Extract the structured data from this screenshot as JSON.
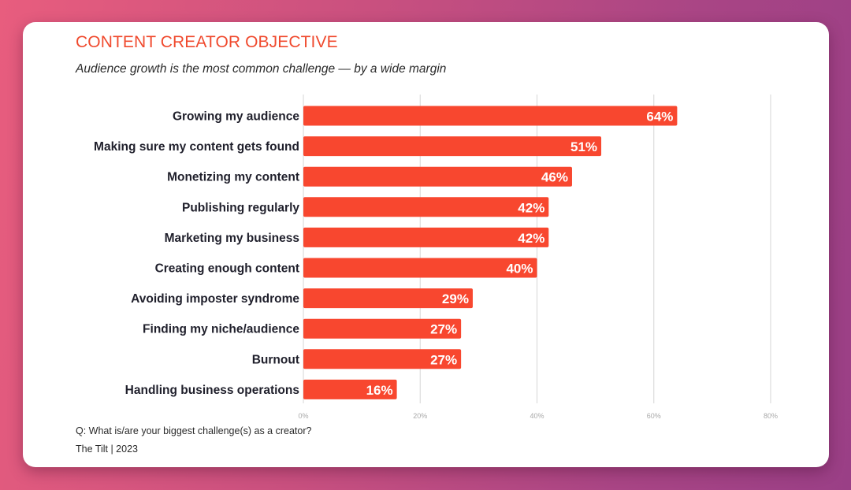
{
  "chart_data": {
    "type": "bar",
    "orientation": "horizontal",
    "title": "CONTENT CREATOR OBJECTIVE",
    "subtitle": "Audience growth is the most common challenge — by a wide margin",
    "categories": [
      "Growing my audience",
      "Making sure my content gets found",
      "Monetizing my content",
      "Publishing regularly",
      "Marketing my business",
      "Creating enough content",
      "Avoiding imposter syndrome",
      "Finding my niche/audience",
      "Burnout",
      "Handling business operations"
    ],
    "values": [
      64,
      51,
      46,
      42,
      42,
      40,
      29,
      27,
      27,
      16
    ],
    "value_labels": [
      "64%",
      "51%",
      "46%",
      "42%",
      "42%",
      "40%",
      "29%",
      "27%",
      "27%",
      "16%"
    ],
    "unit": "%",
    "xlim": [
      0,
      80
    ],
    "x_ticks": [
      0,
      20,
      40,
      60,
      80
    ],
    "x_tick_labels": [
      "0%",
      "20%",
      "40%",
      "60%",
      "80%"
    ],
    "xlabel": "",
    "ylabel": "",
    "grid": true,
    "legend": "none",
    "bar_color": "#f8472f"
  },
  "footer": {
    "question": "Q: What is/are your biggest challenge(s) as a creator?",
    "source": "The Tilt  |  2023"
  },
  "colors": {
    "title": "#f04a2e",
    "bar": "#f8472f"
  }
}
